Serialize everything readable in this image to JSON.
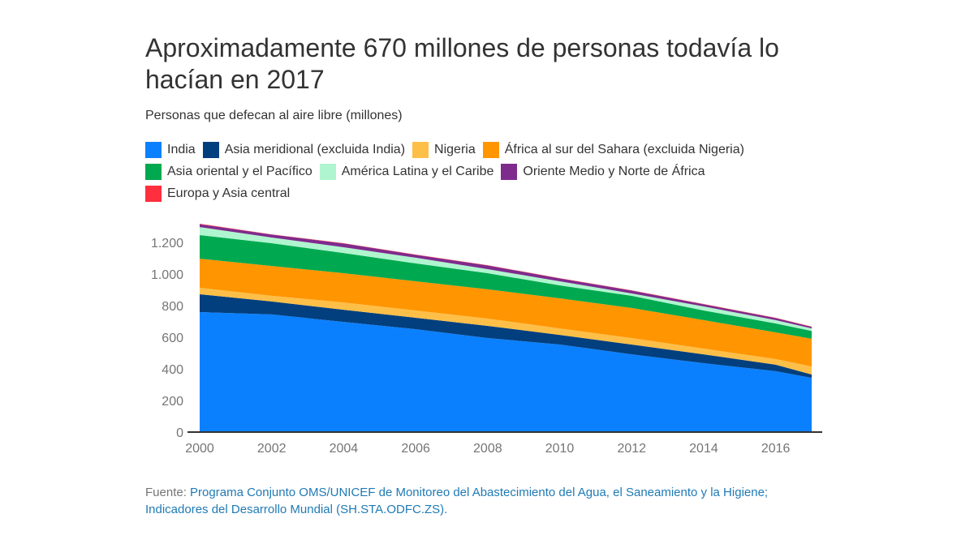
{
  "header": {
    "title": "Aproximadamente 670 millones de personas todavía lo hacían en 2017",
    "subtitle": "Personas que defecan al aire libre (millones)"
  },
  "legend": [
    {
      "label": "India",
      "color": "#0b80ff"
    },
    {
      "label": "Asia meridional (excluida India)",
      "color": "#023f7e"
    },
    {
      "label": "Nigeria",
      "color": "#fdbf48"
    },
    {
      "label": "África al sur del Sahara (excluida Nigeria)",
      "color": "#ff9500"
    },
    {
      "label": "Asia oriental y el Pacífico",
      "color": "#00a94f"
    },
    {
      "label": "América Latina y el Caribe",
      "color": "#aff5cf"
    },
    {
      "label": "Oriente Medio y Norte de África",
      "color": "#7e2b8d"
    },
    {
      "label": "Europa y Asia central",
      "color": "#ff2f3e"
    }
  ],
  "source": {
    "prefix": "Fuente: ",
    "link1": "Programa Conjunto OMS/UNICEF de Monitoreo del Abastecimiento del Agua, el Saneamiento y la Higiene;",
    "link2": "Indicadores del Desarrollo Mundial (SH.STA.ODFC.ZS)."
  },
  "chart_data": {
    "type": "area",
    "stacked": true,
    "title": "Aproximadamente 670 millones de personas todavía lo hacían en 2017",
    "subtitle": "Personas que defecan al aire libre (millones)",
    "xlabel": "",
    "ylabel": "",
    "x": [
      2000,
      2002,
      2004,
      2006,
      2008,
      2010,
      2012,
      2014,
      2016,
      2017
    ],
    "xticks": [
      "2000",
      "2002",
      "2004",
      "2006",
      "2008",
      "2010",
      "2012",
      "2014",
      "2016"
    ],
    "xlim": [
      2000,
      2017
    ],
    "ylim": [
      0,
      1300
    ],
    "yticks": [
      0,
      200,
      400,
      600,
      800,
      1000,
      1200
    ],
    "ytick_labels": [
      "0",
      "200",
      "400",
      "600",
      "800",
      "1.000",
      "1.200"
    ],
    "grid": false,
    "legend_position": "top",
    "series": [
      {
        "name": "India",
        "color": "#0b80ff",
        "values": [
          759,
          744,
          697,
          651,
          595,
          554,
          492,
          436,
          385,
          343
        ]
      },
      {
        "name": "Asia meridional (excluida India)",
        "color": "#023f7e",
        "values": [
          113,
          82,
          77,
          72,
          77,
          61,
          62,
          56,
          41,
          21
        ]
      },
      {
        "name": "Nigeria",
        "color": "#fdbf48",
        "values": [
          41,
          36,
          46,
          46,
          46,
          41,
          41,
          36,
          36,
          51
        ]
      },
      {
        "name": "África al sur del Sahara (excluida Nigeria)",
        "color": "#ff9500",
        "values": [
          184,
          189,
          185,
          185,
          185,
          190,
          190,
          180,
          169,
          175
        ]
      },
      {
        "name": "Asia oriental y el Pacífico",
        "color": "#00a94f",
        "values": [
          149,
          144,
          128,
          113,
          102,
          82,
          77,
          61,
          56,
          50
        ]
      },
      {
        "name": "América Latina y el Caribe",
        "color": "#aff5cf",
        "values": [
          51,
          36,
          36,
          36,
          26,
          26,
          15,
          26,
          21,
          16
        ]
      },
      {
        "name": "Oriente Medio y Norte de África",
        "color": "#7e2b8d",
        "values": [
          18,
          18,
          24,
          18,
          23,
          18,
          18,
          13,
          13,
          9
        ]
      },
      {
        "name": "Europa y Asia central",
        "color": "#ff2f3e",
        "values": [
          3,
          2,
          2,
          2,
          2,
          2,
          2,
          2,
          2,
          2
        ]
      }
    ]
  }
}
